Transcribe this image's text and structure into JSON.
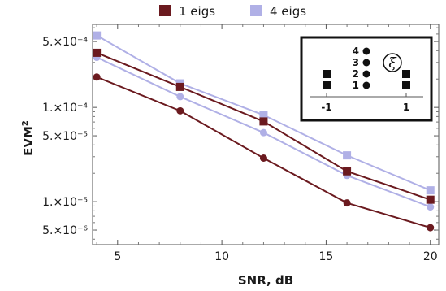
{
  "chart_data": {
    "type": "line",
    "title": "",
    "xlabel": "SNR, dB",
    "ylabel": "EVM",
    "ylabel_superscript": "2",
    "yscale": "log",
    "xlim": [
      3.8,
      20.4
    ],
    "ylim": [
      3.5e-06,
      0.00076
    ],
    "xticks": [
      5,
      10,
      15,
      20
    ],
    "xtick_labels": [
      "5",
      "10",
      "15",
      "20"
    ],
    "yticks": [
      0.0005,
      0.0001,
      5e-05,
      1e-05,
      5e-06
    ],
    "ytick_labels": [
      "5.×10⁻⁴",
      "1.×10⁻⁴",
      "5.×10⁻⁵",
      "1.×10⁻⁵",
      "5.×10⁻⁶"
    ],
    "grid": false,
    "legend": {
      "position": "top-center",
      "entries": [
        {
          "label": "1 eigs",
          "color": "#6b1a1f"
        },
        {
          "label": "4 eigs",
          "color": "#b0b0e6"
        }
      ]
    },
    "x": [
      4,
      8,
      12,
      16,
      20
    ],
    "series": [
      {
        "group": "1 eigs",
        "marker": "square",
        "color": "#6b1a1f",
        "values": [
          0.00038,
          0.000165,
          7.1e-05,
          2.1e-05,
          1.05e-05
        ]
      },
      {
        "group": "1 eigs",
        "marker": "circle",
        "color": "#6b1a1f",
        "values": [
          0.00021,
          9.2e-05,
          2.9e-05,
          9.7e-06,
          5.3e-06
        ]
      },
      {
        "group": "4 eigs",
        "marker": "square",
        "color": "#b0b0e6",
        "values": [
          0.00058,
          0.00018,
          8.3e-05,
          3.1e-05,
          1.32e-05
        ]
      },
      {
        "group": "4 eigs",
        "marker": "circle",
        "color": "#b0b0e6",
        "values": [
          0.00034,
          0.00013,
          5.4e-05,
          1.9e-05,
          8.8e-06
        ]
      }
    ],
    "inset": {
      "position": "top-right",
      "axis_ticks": [
        "-1",
        "1"
      ],
      "circle_labels": [
        "4",
        "3",
        "2",
        "1"
      ],
      "symbol": "ξ",
      "columns": [
        {
          "x": -1,
          "marker": "square",
          "count": 2
        },
        {
          "x": 0,
          "marker": "circle",
          "count": 4
        },
        {
          "x": 1,
          "marker": "square",
          "count": 2
        }
      ]
    }
  }
}
